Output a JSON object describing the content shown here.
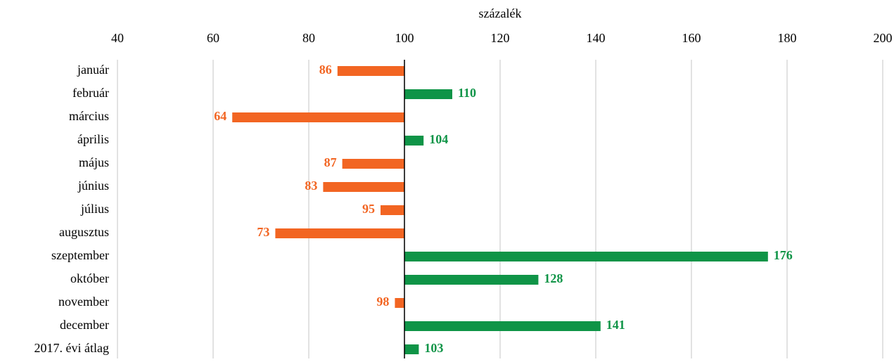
{
  "chart_data": {
    "type": "bar",
    "orientation": "horizontal",
    "xlabel": "százalék",
    "categories": [
      "január",
      "február",
      "március",
      "április",
      "május",
      "június",
      "július",
      "augusztus",
      "szeptember",
      "október",
      "november",
      "december",
      "2017. évi átlag"
    ],
    "values": [
      86,
      110,
      64,
      104,
      87,
      83,
      95,
      73,
      176,
      128,
      98,
      141,
      103
    ],
    "colors": [
      "#f26522",
      "#0f9447",
      "#f26522",
      "#0f9447",
      "#f26522",
      "#f26522",
      "#f26522",
      "#f26522",
      "#0f9447",
      "#0f9447",
      "#f26522",
      "#0f9447",
      "#0f9447"
    ],
    "baseline": 100,
    "xlim": [
      40,
      200
    ],
    "xticks": [
      40,
      60,
      80,
      100,
      120,
      140,
      160,
      180,
      200
    ],
    "grid": true
  }
}
